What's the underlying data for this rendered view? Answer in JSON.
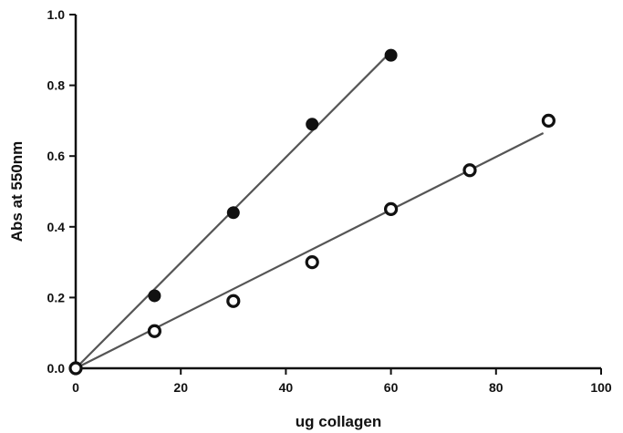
{
  "chart_data": {
    "type": "scatter",
    "title": "",
    "xlabel": "ug collagen",
    "ylabel": "Abs at 550nm",
    "xlim": [
      0,
      100
    ],
    "ylim": [
      0,
      1.0
    ],
    "xticks": [
      "0",
      "20",
      "40",
      "60",
      "80",
      "100"
    ],
    "yticks": [
      "0.0",
      "0.2",
      "0.4",
      "0.6",
      "0.8",
      "1.0"
    ],
    "grid": false,
    "series": [
      {
        "marker": "filled-circle",
        "x": [
          0,
          15,
          30,
          45,
          60
        ],
        "y": [
          0.0,
          0.205,
          0.44,
          0.69,
          0.885
        ],
        "fit_line": {
          "x": [
            0,
            59
          ],
          "y": [
            0.0,
            0.88
          ]
        }
      },
      {
        "marker": "open-circle",
        "x": [
          0,
          15,
          30,
          45,
          60,
          75,
          90
        ],
        "y": [
          0.0,
          0.105,
          0.19,
          0.3,
          0.45,
          0.56,
          0.7
        ],
        "fit_line": {
          "x": [
            0,
            89
          ],
          "y": [
            0.0,
            0.665
          ]
        }
      }
    ],
    "colors": {
      "ink": "#111111",
      "fit_line": "#555555"
    }
  }
}
